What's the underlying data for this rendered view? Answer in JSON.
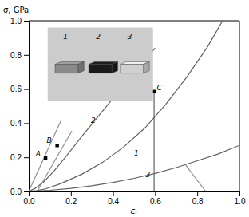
{
  "chart_data": {
    "type": "line",
    "x_label": "εᵣ",
    "y_label": "σ, GPa",
    "xlim": [
      0,
      1.0
    ],
    "ylim": [
      0,
      1.0
    ],
    "xticks": [
      {
        "value": 0,
        "label": "0.0"
      },
      0.2,
      0.4,
      0.6,
      0.8,
      {
        "value": 1.0,
        "label": "1.0"
      }
    ],
    "yticks": [
      {
        "value": 0,
        "label": "0.0"
      },
      0.2,
      0.4,
      0.6,
      0.8,
      {
        "value": 1.0,
        "label": "1.0"
      }
    ],
    "series": [
      {
        "color": "#606060",
        "x": [
          0,
          0.04,
          0.08,
          0.15,
          0.25,
          0.35,
          0.45,
          0.55,
          0.65,
          0.75,
          0.85,
          0.92
        ],
        "values": [
          0,
          0.005,
          0.015,
          0.045,
          0.1,
          0.17,
          0.26,
          0.37,
          0.51,
          0.67,
          0.85,
          1.0
        ]
      },
      {
        "color": "#606060",
        "x": [
          0,
          0.03,
          0.07,
          0.12,
          0.18,
          0.25,
          0.35,
          0.45,
          0.55,
          0.6
        ],
        "values": [
          0,
          0.018,
          0.055,
          0.12,
          0.21,
          0.32,
          0.47,
          0.62,
          0.77,
          0.84
        ]
      },
      {
        "color": "#606060",
        "x": [
          0,
          0.05,
          0.1,
          0.2,
          0.3,
          0.4,
          0.5,
          0.6,
          0.7,
          0.8,
          0.9,
          1.0
        ],
        "values": [
          0,
          0.003,
          0.007,
          0.018,
          0.033,
          0.053,
          0.077,
          0.106,
          0.14,
          0.18,
          0.22,
          0.27
        ]
      },
      {
        "color": "#909090",
        "x": [
          0.0,
          0.155
        ],
        "values": [
          0.0,
          0.42
        ]
      },
      {
        "color": "#909090",
        "x": [
          0.04,
          0.205
        ],
        "values": [
          0.0,
          0.355
        ]
      },
      {
        "color": "#606060",
        "x": [
          0.595,
          0.595
        ],
        "values": [
          0.0,
          0.585
        ]
      },
      {
        "color": "#909090",
        "x": [
          0.745,
          0.84
        ],
        "values": [
          0.155,
          0.0
        ]
      },
      {
        "type": "scatter",
        "marker": "square",
        "color": "#000000",
        "x": [
          0.08,
          0.135,
          0.595
        ],
        "values": [
          0.195,
          0.27,
          0.585
        ]
      }
    ],
    "annotations": [
      {
        "text": "1",
        "x": 0.5,
        "y": 0.21
      },
      {
        "text": "2",
        "x": 0.295,
        "y": 0.4
      },
      {
        "text": "3",
        "x": 0.555,
        "y": 0.082
      },
      {
        "text": "A",
        "x": 0.033,
        "y": 0.205
      },
      {
        "text": "B",
        "x": 0.085,
        "y": 0.285
      },
      {
        "text": "C",
        "x": 0.608,
        "y": 0.593
      }
    ],
    "inset": {
      "labels": [
        "1",
        "2",
        "3"
      ],
      "colors": [
        "#8a8a8a",
        "#1a1a1a",
        "#d0d0d0"
      ]
    }
  }
}
